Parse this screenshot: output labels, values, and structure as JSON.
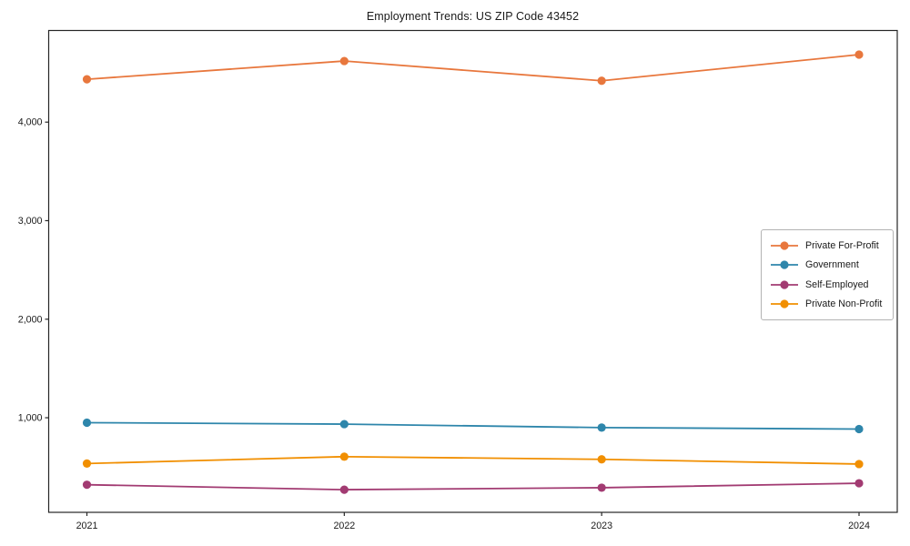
{
  "page": {
    "background": "#ffffff"
  },
  "chart_data": {
    "type": "line",
    "title": "Employment Trends: US ZIP Code 43452",
    "x": [
      "2021",
      "2022",
      "2023",
      "2024"
    ],
    "xlabel": "",
    "ylabel": "",
    "ylim": [
      40,
      4930
    ],
    "y_ticks": [
      1000,
      2000,
      3000,
      4000
    ],
    "y_tick_labels": [
      "1,000",
      "2,000",
      "3,000",
      "4,000"
    ],
    "grid": false,
    "legend_position": "center-right",
    "marker": "circle",
    "axis_color": "#262626",
    "series": [
      {
        "name": "Private For-Profit",
        "color": "#E8773D",
        "values": [
          4435,
          4620,
          4420,
          4685
        ]
      },
      {
        "name": "Government",
        "color": "#2E86AB",
        "values": [
          950,
          935,
          900,
          885
        ]
      },
      {
        "name": "Self-Employed",
        "color": "#A23B72",
        "values": [
          320,
          270,
          290,
          335
        ]
      },
      {
        "name": "Private Non-Profit",
        "color": "#F18F01",
        "values": [
          535,
          605,
          578,
          530
        ]
      }
    ]
  }
}
